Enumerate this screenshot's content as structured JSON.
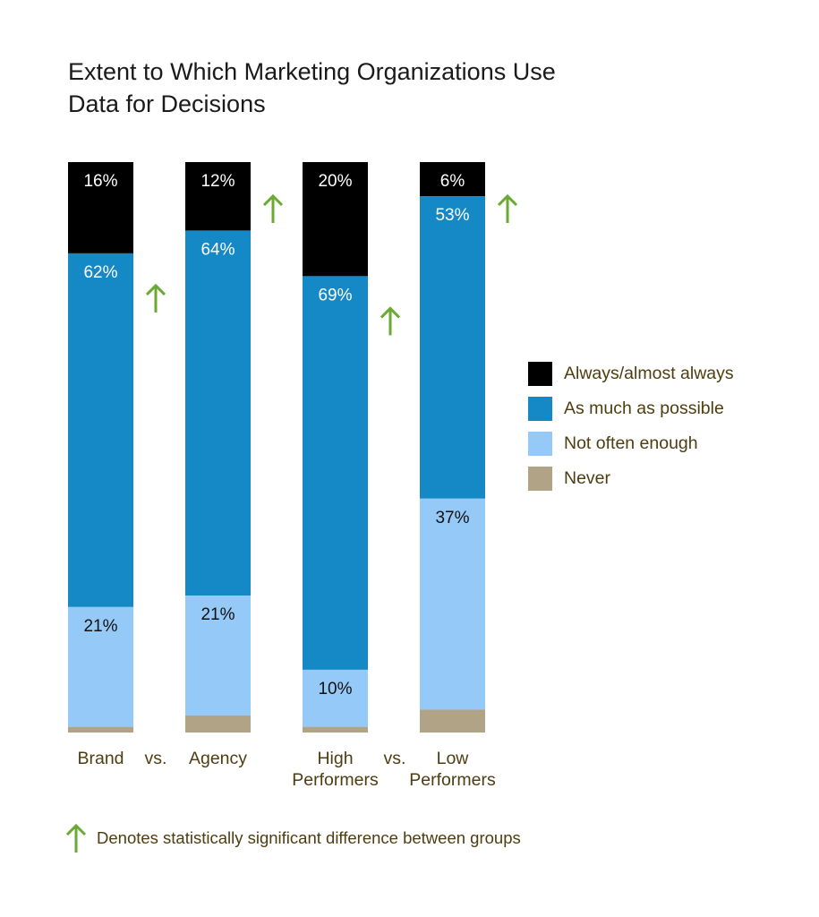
{
  "title_lines": [
    "Extent to Which Marketing Organizations Use",
    "Data for Decisions"
  ],
  "colors": {
    "always": "#000000",
    "as_much": "#1589c6",
    "not_often": "#94c9f8",
    "never": "#b1a385",
    "arrow": "#6aaa32",
    "label_text": "#4d3d10"
  },
  "chart_data": {
    "type": "bar",
    "stacked": true,
    "normalized_percent": true,
    "categories": [
      "Brand",
      "Agency",
      "High Performers",
      "Low Performers"
    ],
    "category_labels": [
      [
        "Brand"
      ],
      [
        "Agency"
      ],
      [
        "High",
        "Performers"
      ],
      [
        "Low",
        "Performers"
      ]
    ],
    "comparison_word": "vs.",
    "series": [
      {
        "name": "Always/almost always",
        "color_key": "always",
        "values": [
          16,
          12,
          20,
          6
        ],
        "labels": [
          "16%",
          "12%",
          "20%",
          "6%"
        ]
      },
      {
        "name": "As much as possible",
        "color_key": "as_much",
        "values": [
          62,
          64,
          69,
          53
        ],
        "labels": [
          "62%",
          "64%",
          "69%",
          "53%"
        ]
      },
      {
        "name": "Not often enough",
        "color_key": "not_often",
        "values": [
          21,
          21,
          10,
          37
        ],
        "labels": [
          "21%",
          "21%",
          "10%",
          "37%"
        ]
      },
      {
        "name": "Never",
        "color_key": "never",
        "values": [
          1,
          3,
          1,
          4
        ],
        "labels": [
          "",
          "",
          "",
          ""
        ]
      }
    ],
    "significant_arrows": [
      {
        "category": "Brand",
        "series": "As much as possible"
      },
      {
        "category": "Agency",
        "series": "Always/almost always"
      },
      {
        "category": "High Performers",
        "series": "As much as possible"
      },
      {
        "category": "Low Performers",
        "series": "Always/almost always"
      }
    ],
    "legend_position": "right",
    "grid": false
  },
  "note": {
    "label": "Denotes statistically significant difference between groups",
    "icon": "up-arrow-icon"
  }
}
